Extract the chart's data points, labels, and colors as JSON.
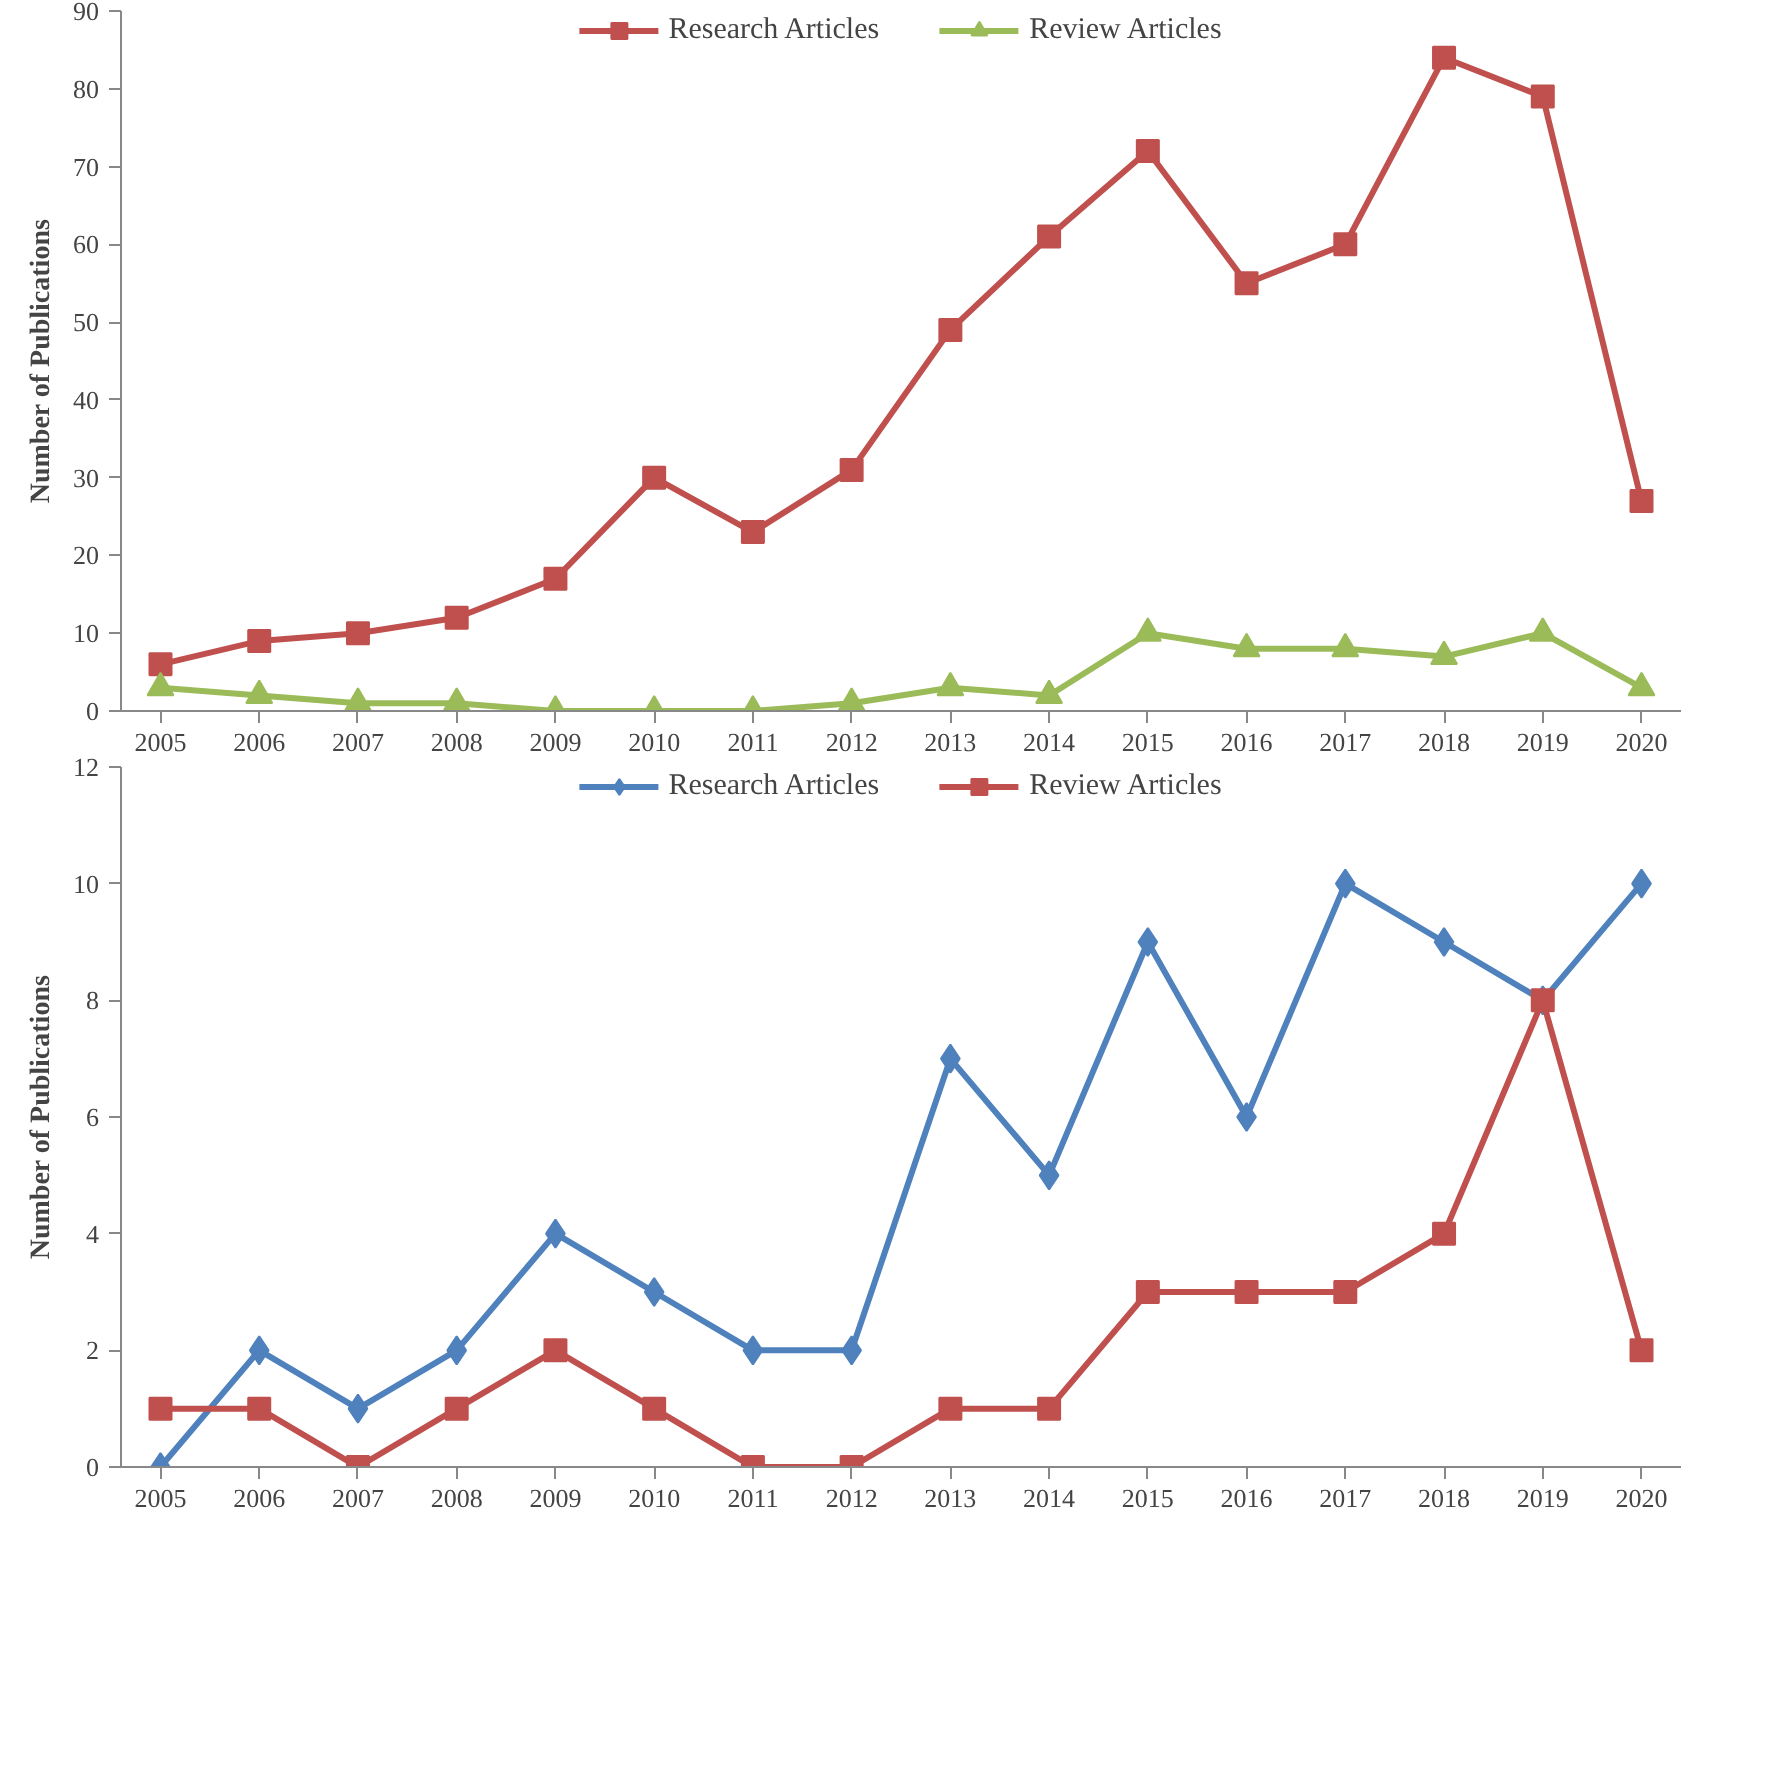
{
  "chart_data": [
    {
      "type": "line",
      "ylabel": "Number of Publications",
      "categories": [
        "2005",
        "2006",
        "2007",
        "2008",
        "2009",
        "2010",
        "2011",
        "2012",
        "2013",
        "2014",
        "2015",
        "2016",
        "2017",
        "2018",
        "2019",
        "2020"
      ],
      "ylim": [
        0,
        90
      ],
      "yticks": [
        0,
        10,
        20,
        30,
        40,
        50,
        60,
        70,
        80,
        90
      ],
      "grid": false,
      "legend": "top",
      "line_style": "solid",
      "series": [
        {
          "name": "Research Articles",
          "color": "#c0504d",
          "marker": "square",
          "values": [
            6,
            9,
            10,
            12,
            17,
            30,
            23,
            31,
            49,
            61,
            72,
            55,
            60,
            84,
            79,
            27
          ]
        },
        {
          "name": "Review Articles",
          "color": "#9bbb59",
          "marker": "triangle",
          "values": [
            3,
            2,
            1,
            1,
            0,
            0,
            0,
            1,
            3,
            2,
            10,
            8,
            8,
            7,
            10,
            3
          ]
        }
      ]
    },
    {
      "type": "line",
      "ylabel": "Number of Publications",
      "categories": [
        "2005",
        "2006",
        "2007",
        "2008",
        "2009",
        "2010",
        "2011",
        "2012",
        "2013",
        "2014",
        "2015",
        "2016",
        "2017",
        "2018",
        "2019",
        "2020"
      ],
      "ylim": [
        0,
        12
      ],
      "yticks": [
        0,
        2,
        4,
        6,
        8,
        10,
        12
      ],
      "grid": false,
      "legend": "top",
      "line_style": "solid",
      "series": [
        {
          "name": "Research Articles",
          "color": "#4f81bd",
          "marker": "diamond",
          "values": [
            0,
            2,
            1,
            2,
            4,
            3,
            2,
            2,
            7,
            5,
            9,
            6,
            10,
            9,
            8,
            10
          ]
        },
        {
          "name": "Review Articles",
          "color": "#c0504d",
          "marker": "square",
          "values": [
            1,
            1,
            0,
            1,
            2,
            1,
            0,
            0,
            1,
            1,
            3,
            3,
            3,
            4,
            8,
            2
          ]
        }
      ]
    }
  ]
}
